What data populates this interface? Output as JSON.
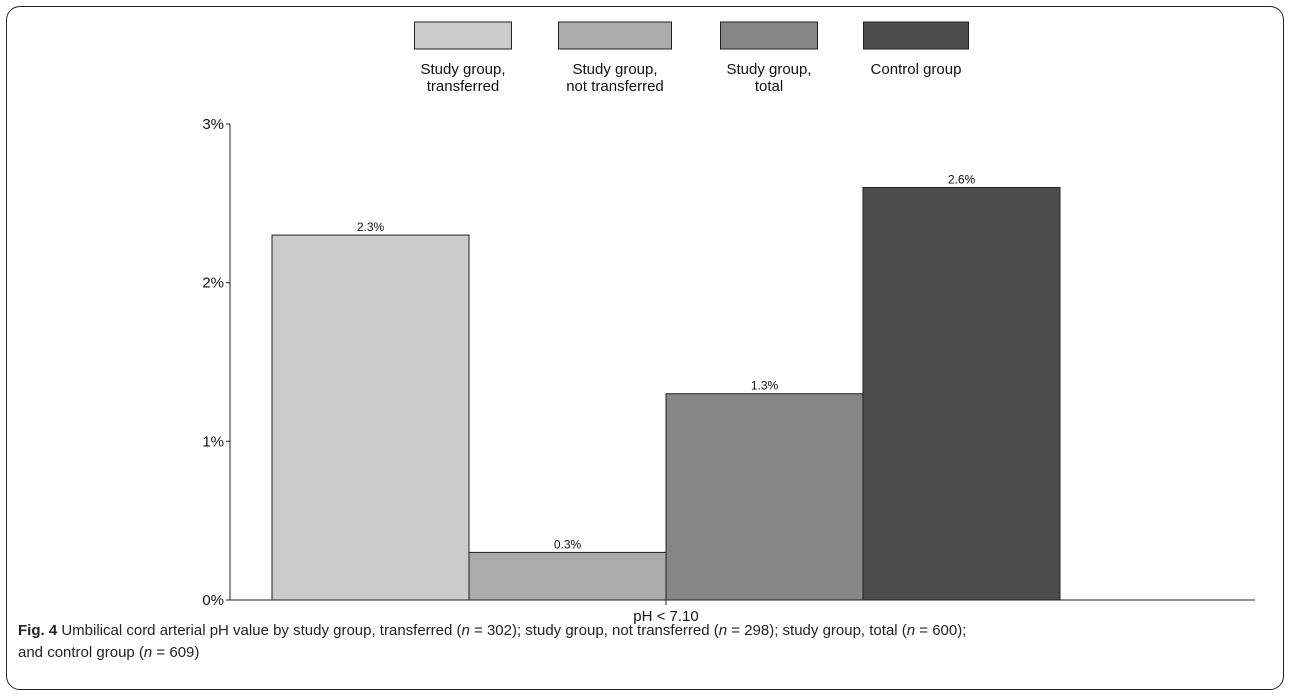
{
  "chart_data": {
    "type": "bar",
    "categories": [
      "pH < 7.10"
    ],
    "series": [
      {
        "name": "Study group, transferred",
        "values": [
          2.3
        ],
        "value_label": "2.3%",
        "color": "#cbcbcb"
      },
      {
        "name": "Study group, not transferred",
        "values": [
          0.3
        ],
        "value_label": "0.3%",
        "color": "#ababab"
      },
      {
        "name": "Study group, total",
        "values": [
          1.3
        ],
        "value_label": "1.3%",
        "color": "#868686"
      },
      {
        "name": "Control group",
        "values": [
          2.6
        ],
        "value_label": "2.6%",
        "color": "#4c4c4c"
      }
    ],
    "ylim": [
      0,
      3
    ],
    "yticks": [
      0,
      1,
      2,
      3
    ],
    "ytick_labels": [
      "0%",
      "1%",
      "2%",
      "3%"
    ],
    "legend_placement": "top",
    "grid": false
  },
  "caption": {
    "fig_label": "Fig. 4",
    "text_1": " Umbilical cord arterial pH value by study group, transferred (",
    "n_1": "n",
    "eq_1": " = 302); study group, not transferred (",
    "n_2": "n",
    "eq_2": " = 298); study group, total (",
    "n_3": "n",
    "eq_3": " = 600);",
    "text_2": "and control group (",
    "n_4": "n",
    "eq_4": " = 609)"
  }
}
